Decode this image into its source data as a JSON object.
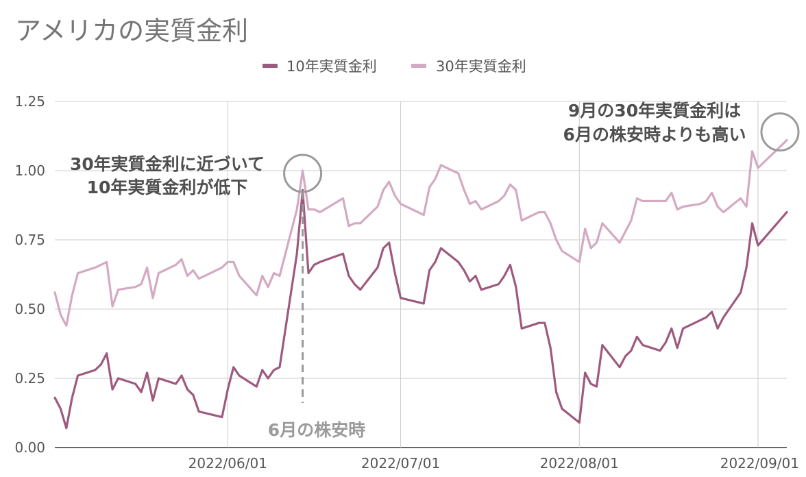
{
  "colors": {
    "series_10y": "#9e5a7e",
    "series_30y": "#d4a9c2",
    "grid": "#cccccc",
    "annotation": "#9a9a9a"
  },
  "chart_data": {
    "type": "line",
    "title": "アメリカの実質金利",
    "xlabel": "",
    "ylabel": "",
    "ylim": [
      0,
      1.25
    ],
    "yticks": [
      "0.00",
      "0.25",
      "0.50",
      "0.75",
      "1.00",
      "1.25"
    ],
    "x_ticks": [
      {
        "date": "2022-06-01",
        "label": "2022/06/01"
      },
      {
        "date": "2022-07-01",
        "label": "2022/07/01"
      },
      {
        "date": "2022-08-01",
        "label": "2022/08/01"
      },
      {
        "date": "2022-09-01",
        "label": "2022/09/01"
      }
    ],
    "x_range": [
      "2022-05-02",
      "2022-09-06"
    ],
    "legend_position": "top",
    "grid": true,
    "series": [
      {
        "name": "10年実質金利",
        "points": [
          [
            "2022-05-02",
            0.18
          ],
          [
            "2022-05-03",
            0.14
          ],
          [
            "2022-05-04",
            0.07
          ],
          [
            "2022-05-05",
            0.18
          ],
          [
            "2022-05-06",
            0.26
          ],
          [
            "2022-05-09",
            0.28
          ],
          [
            "2022-05-10",
            0.3
          ],
          [
            "2022-05-11",
            0.34
          ],
          [
            "2022-05-12",
            0.21
          ],
          [
            "2022-05-13",
            0.25
          ],
          [
            "2022-05-16",
            0.23
          ],
          [
            "2022-05-17",
            0.2
          ],
          [
            "2022-05-18",
            0.27
          ],
          [
            "2022-05-19",
            0.17
          ],
          [
            "2022-05-20",
            0.25
          ],
          [
            "2022-05-23",
            0.23
          ],
          [
            "2022-05-24",
            0.26
          ],
          [
            "2022-05-25",
            0.21
          ],
          [
            "2022-05-26",
            0.19
          ],
          [
            "2022-05-27",
            0.13
          ],
          [
            "2022-05-31",
            0.11
          ],
          [
            "2022-06-01",
            0.21
          ],
          [
            "2022-06-02",
            0.29
          ],
          [
            "2022-06-03",
            0.26
          ],
          [
            "2022-06-06",
            0.22
          ],
          [
            "2022-06-07",
            0.28
          ],
          [
            "2022-06-08",
            0.25
          ],
          [
            "2022-06-09",
            0.28
          ],
          [
            "2022-06-10",
            0.29
          ],
          [
            "2022-06-13",
            0.7
          ],
          [
            "2022-06-14",
            0.93
          ],
          [
            "2022-06-15",
            0.63
          ],
          [
            "2022-06-16",
            0.66
          ],
          [
            "2022-06-17",
            0.67
          ],
          [
            "2022-06-21",
            0.7
          ],
          [
            "2022-06-22",
            0.62
          ],
          [
            "2022-06-23",
            0.59
          ],
          [
            "2022-06-24",
            0.57
          ],
          [
            "2022-06-27",
            0.65
          ],
          [
            "2022-06-28",
            0.72
          ],
          [
            "2022-06-29",
            0.74
          ],
          [
            "2022-06-30",
            0.63
          ],
          [
            "2022-07-01",
            0.54
          ],
          [
            "2022-07-05",
            0.52
          ],
          [
            "2022-07-06",
            0.64
          ],
          [
            "2022-07-07",
            0.67
          ],
          [
            "2022-07-08",
            0.72
          ],
          [
            "2022-07-11",
            0.67
          ],
          [
            "2022-07-12",
            0.64
          ],
          [
            "2022-07-13",
            0.6
          ],
          [
            "2022-07-14",
            0.62
          ],
          [
            "2022-07-15",
            0.57
          ],
          [
            "2022-07-18",
            0.59
          ],
          [
            "2022-07-19",
            0.62
          ],
          [
            "2022-07-20",
            0.66
          ],
          [
            "2022-07-21",
            0.58
          ],
          [
            "2022-07-22",
            0.43
          ],
          [
            "2022-07-25",
            0.45
          ],
          [
            "2022-07-26",
            0.45
          ],
          [
            "2022-07-27",
            0.36
          ],
          [
            "2022-07-28",
            0.2
          ],
          [
            "2022-07-29",
            0.14
          ],
          [
            "2022-08-01",
            0.09
          ],
          [
            "2022-08-02",
            0.27
          ],
          [
            "2022-08-03",
            0.23
          ],
          [
            "2022-08-04",
            0.22
          ],
          [
            "2022-08-05",
            0.37
          ],
          [
            "2022-08-08",
            0.29
          ],
          [
            "2022-08-09",
            0.33
          ],
          [
            "2022-08-10",
            0.35
          ],
          [
            "2022-08-11",
            0.4
          ],
          [
            "2022-08-12",
            0.37
          ],
          [
            "2022-08-15",
            0.35
          ],
          [
            "2022-08-16",
            0.38
          ],
          [
            "2022-08-17",
            0.43
          ],
          [
            "2022-08-18",
            0.36
          ],
          [
            "2022-08-19",
            0.43
          ],
          [
            "2022-08-22",
            0.46
          ],
          [
            "2022-08-23",
            0.47
          ],
          [
            "2022-08-24",
            0.49
          ],
          [
            "2022-08-25",
            0.43
          ],
          [
            "2022-08-26",
            0.47
          ],
          [
            "2022-08-29",
            0.56
          ],
          [
            "2022-08-30",
            0.65
          ],
          [
            "2022-08-31",
            0.81
          ],
          [
            "2022-09-01",
            0.73
          ],
          [
            "2022-09-06",
            0.85
          ]
        ]
      },
      {
        "name": "30年実質金利",
        "points": [
          [
            "2022-05-02",
            0.56
          ],
          [
            "2022-05-03",
            0.48
          ],
          [
            "2022-05-04",
            0.44
          ],
          [
            "2022-05-05",
            0.55
          ],
          [
            "2022-05-06",
            0.63
          ],
          [
            "2022-05-09",
            0.65
          ],
          [
            "2022-05-10",
            0.66
          ],
          [
            "2022-05-11",
            0.67
          ],
          [
            "2022-05-12",
            0.51
          ],
          [
            "2022-05-13",
            0.57
          ],
          [
            "2022-05-16",
            0.58
          ],
          [
            "2022-05-17",
            0.59
          ],
          [
            "2022-05-18",
            0.65
          ],
          [
            "2022-05-19",
            0.54
          ],
          [
            "2022-05-20",
            0.63
          ],
          [
            "2022-05-23",
            0.66
          ],
          [
            "2022-05-24",
            0.68
          ],
          [
            "2022-05-25",
            0.62
          ],
          [
            "2022-05-26",
            0.64
          ],
          [
            "2022-05-27",
            0.61
          ],
          [
            "2022-05-31",
            0.65
          ],
          [
            "2022-06-01",
            0.67
          ],
          [
            "2022-06-02",
            0.67
          ],
          [
            "2022-06-03",
            0.62
          ],
          [
            "2022-06-06",
            0.55
          ],
          [
            "2022-06-07",
            0.62
          ],
          [
            "2022-06-08",
            0.58
          ],
          [
            "2022-06-09",
            0.63
          ],
          [
            "2022-06-10",
            0.62
          ],
          [
            "2022-06-13",
            0.86
          ],
          [
            "2022-06-14",
            1.0
          ],
          [
            "2022-06-15",
            0.86
          ],
          [
            "2022-06-16",
            0.86
          ],
          [
            "2022-06-17",
            0.85
          ],
          [
            "2022-06-21",
            0.9
          ],
          [
            "2022-06-22",
            0.8
          ],
          [
            "2022-06-23",
            0.81
          ],
          [
            "2022-06-24",
            0.81
          ],
          [
            "2022-06-27",
            0.87
          ],
          [
            "2022-06-28",
            0.93
          ],
          [
            "2022-06-29",
            0.96
          ],
          [
            "2022-06-30",
            0.91
          ],
          [
            "2022-07-01",
            0.88
          ],
          [
            "2022-07-05",
            0.84
          ],
          [
            "2022-07-06",
            0.94
          ],
          [
            "2022-07-07",
            0.97
          ],
          [
            "2022-07-08",
            1.02
          ],
          [
            "2022-07-11",
            0.99
          ],
          [
            "2022-07-12",
            0.93
          ],
          [
            "2022-07-13",
            0.88
          ],
          [
            "2022-07-14",
            0.89
          ],
          [
            "2022-07-15",
            0.86
          ],
          [
            "2022-07-18",
            0.89
          ],
          [
            "2022-07-19",
            0.91
          ],
          [
            "2022-07-20",
            0.95
          ],
          [
            "2022-07-21",
            0.93
          ],
          [
            "2022-07-22",
            0.82
          ],
          [
            "2022-07-25",
            0.85
          ],
          [
            "2022-07-26",
            0.85
          ],
          [
            "2022-07-27",
            0.81
          ],
          [
            "2022-07-28",
            0.75
          ],
          [
            "2022-07-29",
            0.71
          ],
          [
            "2022-08-01",
            0.67
          ],
          [
            "2022-08-02",
            0.79
          ],
          [
            "2022-08-03",
            0.72
          ],
          [
            "2022-08-04",
            0.74
          ],
          [
            "2022-08-05",
            0.81
          ],
          [
            "2022-08-08",
            0.74
          ],
          [
            "2022-08-09",
            0.78
          ],
          [
            "2022-08-10",
            0.82
          ],
          [
            "2022-08-11",
            0.9
          ],
          [
            "2022-08-12",
            0.89
          ],
          [
            "2022-08-15",
            0.89
          ],
          [
            "2022-08-16",
            0.89
          ],
          [
            "2022-08-17",
            0.92
          ],
          [
            "2022-08-18",
            0.86
          ],
          [
            "2022-08-19",
            0.87
          ],
          [
            "2022-08-22",
            0.88
          ],
          [
            "2022-08-23",
            0.89
          ],
          [
            "2022-08-24",
            0.92
          ],
          [
            "2022-08-25",
            0.87
          ],
          [
            "2022-08-26",
            0.85
          ],
          [
            "2022-08-29",
            0.9
          ],
          [
            "2022-08-30",
            0.87
          ],
          [
            "2022-08-31",
            1.07
          ],
          [
            "2022-09-01",
            1.01
          ],
          [
            "2022-09-06",
            1.11
          ]
        ]
      }
    ],
    "annotations": [
      {
        "id": "june-drop",
        "lines": [
          "30年実質金利に近づいて",
          "10年実質金利が低下"
        ],
        "at_date": "2022-06-14",
        "at_value": 1.0
      },
      {
        "id": "june-selloff",
        "label": "6月の株安時",
        "at_date": "2022-06-14"
      },
      {
        "id": "sep-high",
        "lines": [
          "9月の30年実質金利は",
          "6月の株安時よりも高い"
        ],
        "at_date": "2022-09-06",
        "at_value": 1.11
      }
    ]
  }
}
